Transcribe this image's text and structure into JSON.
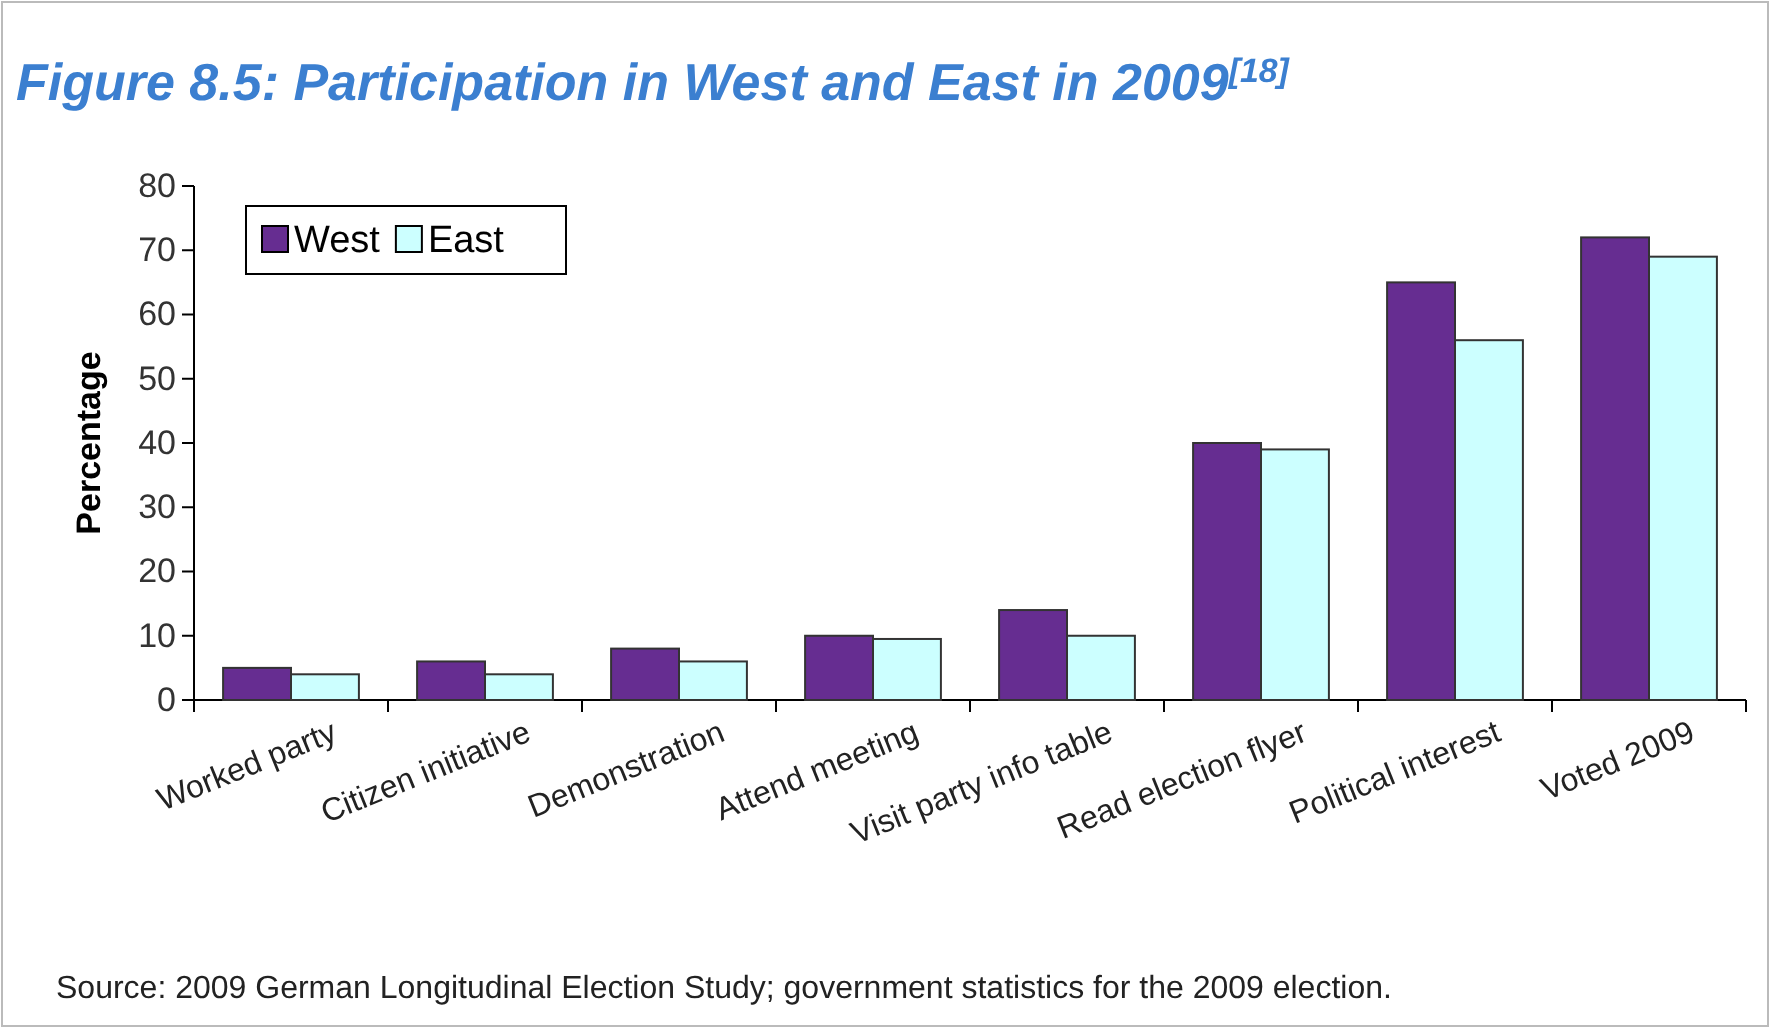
{
  "chart_data": {
    "type": "bar",
    "title": "Figure 8.5: Participation in West and East in 2009$^{[18]}$",
    "ylabel": "Percentage",
    "categories": [
      "Worked party",
      "Citizen initiative",
      "Demonstration",
      "Attend meeting",
      "Visit party info table",
      "Read election flyer",
      "Political interest",
      "Voted 2009"
    ],
    "series": [
      {
        "name": "West",
        "color": "#662d91",
        "values": [
          5,
          6,
          8,
          10,
          14,
          40,
          65,
          72
        ]
      },
      {
        "name": "East",
        "color": "#ccffff",
        "values": [
          4,
          4,
          6,
          9.5,
          10,
          39,
          56,
          69
        ]
      }
    ],
    "ylim": [
      0,
      80
    ],
    "yticks": [
      0,
      10,
      20,
      30,
      40,
      50,
      60,
      70,
      80
    ],
    "grid": false,
    "legend": "top left",
    "annotations": [
      "Source: 2009  German Longitudinal Election Study; government statistics for the 2009  election."
    ]
  }
}
